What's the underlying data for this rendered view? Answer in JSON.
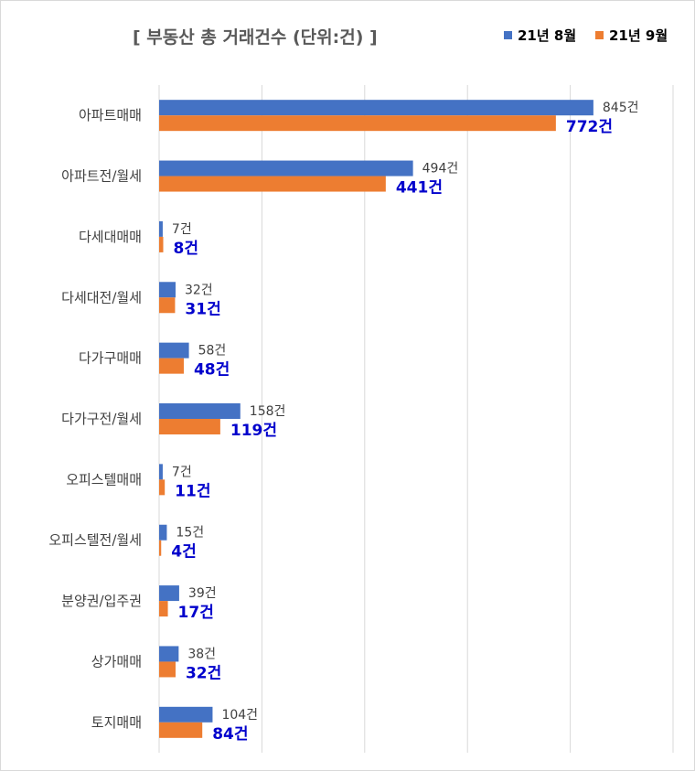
{
  "chart_data": {
    "type": "bar",
    "orientation": "horizontal",
    "title": "[ 부동산 총 거래건수 (단위:건) ]",
    "categories": [
      "아파트매매",
      "아파트전/월세",
      "다세대매매",
      "다세대전/월세",
      "다가구매매",
      "다가구전/월세",
      "오피스텔매매",
      "오피스텔전/월세",
      "분양권/입주권",
      "상가매매",
      "토지매매"
    ],
    "series": [
      {
        "name": "21년 8월",
        "color": "#4472c4",
        "values": [
          845,
          494,
          7,
          32,
          58,
          158,
          7,
          15,
          39,
          38,
          104
        ],
        "labels": [
          "845건",
          "494건",
          "7건",
          "32건",
          "58건",
          "158건",
          "7건",
          "15건",
          "39건",
          "38건",
          "104건"
        ]
      },
      {
        "name": "21년 9월",
        "color": "#ed7d31",
        "values": [
          772,
          441,
          8,
          31,
          48,
          119,
          11,
          4,
          17,
          32,
          84
        ],
        "labels": [
          "772건",
          "441건",
          "8건",
          "31건",
          "48건",
          "119건",
          "11건",
          "4건",
          "17건",
          "32건",
          "84건"
        ]
      }
    ],
    "xlim": [
      0,
      1000
    ],
    "grid": true,
    "legend_position": "top-right"
  }
}
